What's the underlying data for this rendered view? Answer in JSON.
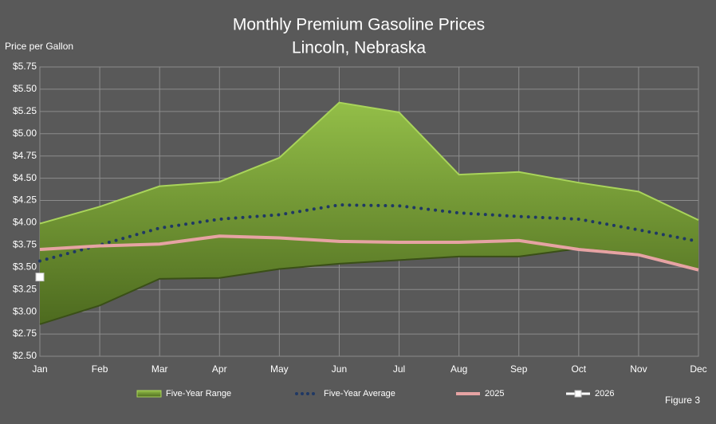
{
  "chart_data": {
    "type": "line",
    "title": "Monthly Premium Gasoline Prices",
    "subtitle": "Lincoln, Nebraska",
    "y_label": "Price per Gallon",
    "note": "Figure 3",
    "categories": [
      "Jan",
      "Feb",
      "Mar",
      "Apr",
      "May",
      "Jun",
      "Jul",
      "Aug",
      "Sep",
      "Oct",
      "Nov",
      "Dec"
    ],
    "ylim": [
      2.5,
      5.75
    ],
    "yticks": [
      {
        "value": 2.5,
        "label": "$2.50"
      },
      {
        "value": 2.75,
        "label": "$2.75"
      },
      {
        "value": 3,
        "label": "$3.00"
      },
      {
        "value": 3.25,
        "label": "$3.25"
      },
      {
        "value": 3.5,
        "label": "$3.50"
      },
      {
        "value": 3.75,
        "label": "$3.75"
      },
      {
        "value": 4,
        "label": "$4.00"
      },
      {
        "value": 4.25,
        "label": "$4.25"
      },
      {
        "value": 4.5,
        "label": "$4.50"
      },
      {
        "value": 4.75,
        "label": "$4.75"
      },
      {
        "value": 5,
        "label": "$5.00"
      },
      {
        "value": 5.25,
        "label": "$5.25"
      },
      {
        "value": 5.5,
        "label": "$5.50"
      },
      {
        "value": 5.75,
        "label": "$5.75"
      }
    ],
    "grid": true,
    "series": [
      {
        "name": "Five-Year Range",
        "style": "range",
        "color": "#7fa83a",
        "high": [
          3.99,
          4.18,
          4.41,
          4.46,
          4.73,
          5.35,
          5.24,
          4.54,
          4.57,
          4.45,
          4.35,
          4.03
        ],
        "low": [
          2.86,
          3.07,
          3.37,
          3.38,
          3.48,
          3.54,
          3.58,
          3.62,
          3.62,
          3.71,
          3.65,
          3.47
        ]
      },
      {
        "name": "Five-Year Average",
        "style": "dotted",
        "color": "#1f3864",
        "values": [
          3.57,
          3.75,
          3.94,
          4.04,
          4.09,
          4.2,
          4.19,
          4.11,
          4.07,
          4.04,
          3.92,
          3.79
        ]
      },
      {
        "name": "2025",
        "style": "solid",
        "color": "#e6a3a3",
        "values": [
          3.7,
          3.74,
          3.76,
          3.85,
          3.83,
          3.79,
          3.78,
          3.78,
          3.8,
          3.7,
          3.64,
          3.47
        ]
      },
      {
        "name": "2026",
        "style": "marker",
        "color": "#ffffff",
        "values": [
          3.39,
          null,
          null,
          null,
          null,
          null,
          null,
          null,
          null,
          null,
          null,
          null
        ]
      }
    ]
  }
}
